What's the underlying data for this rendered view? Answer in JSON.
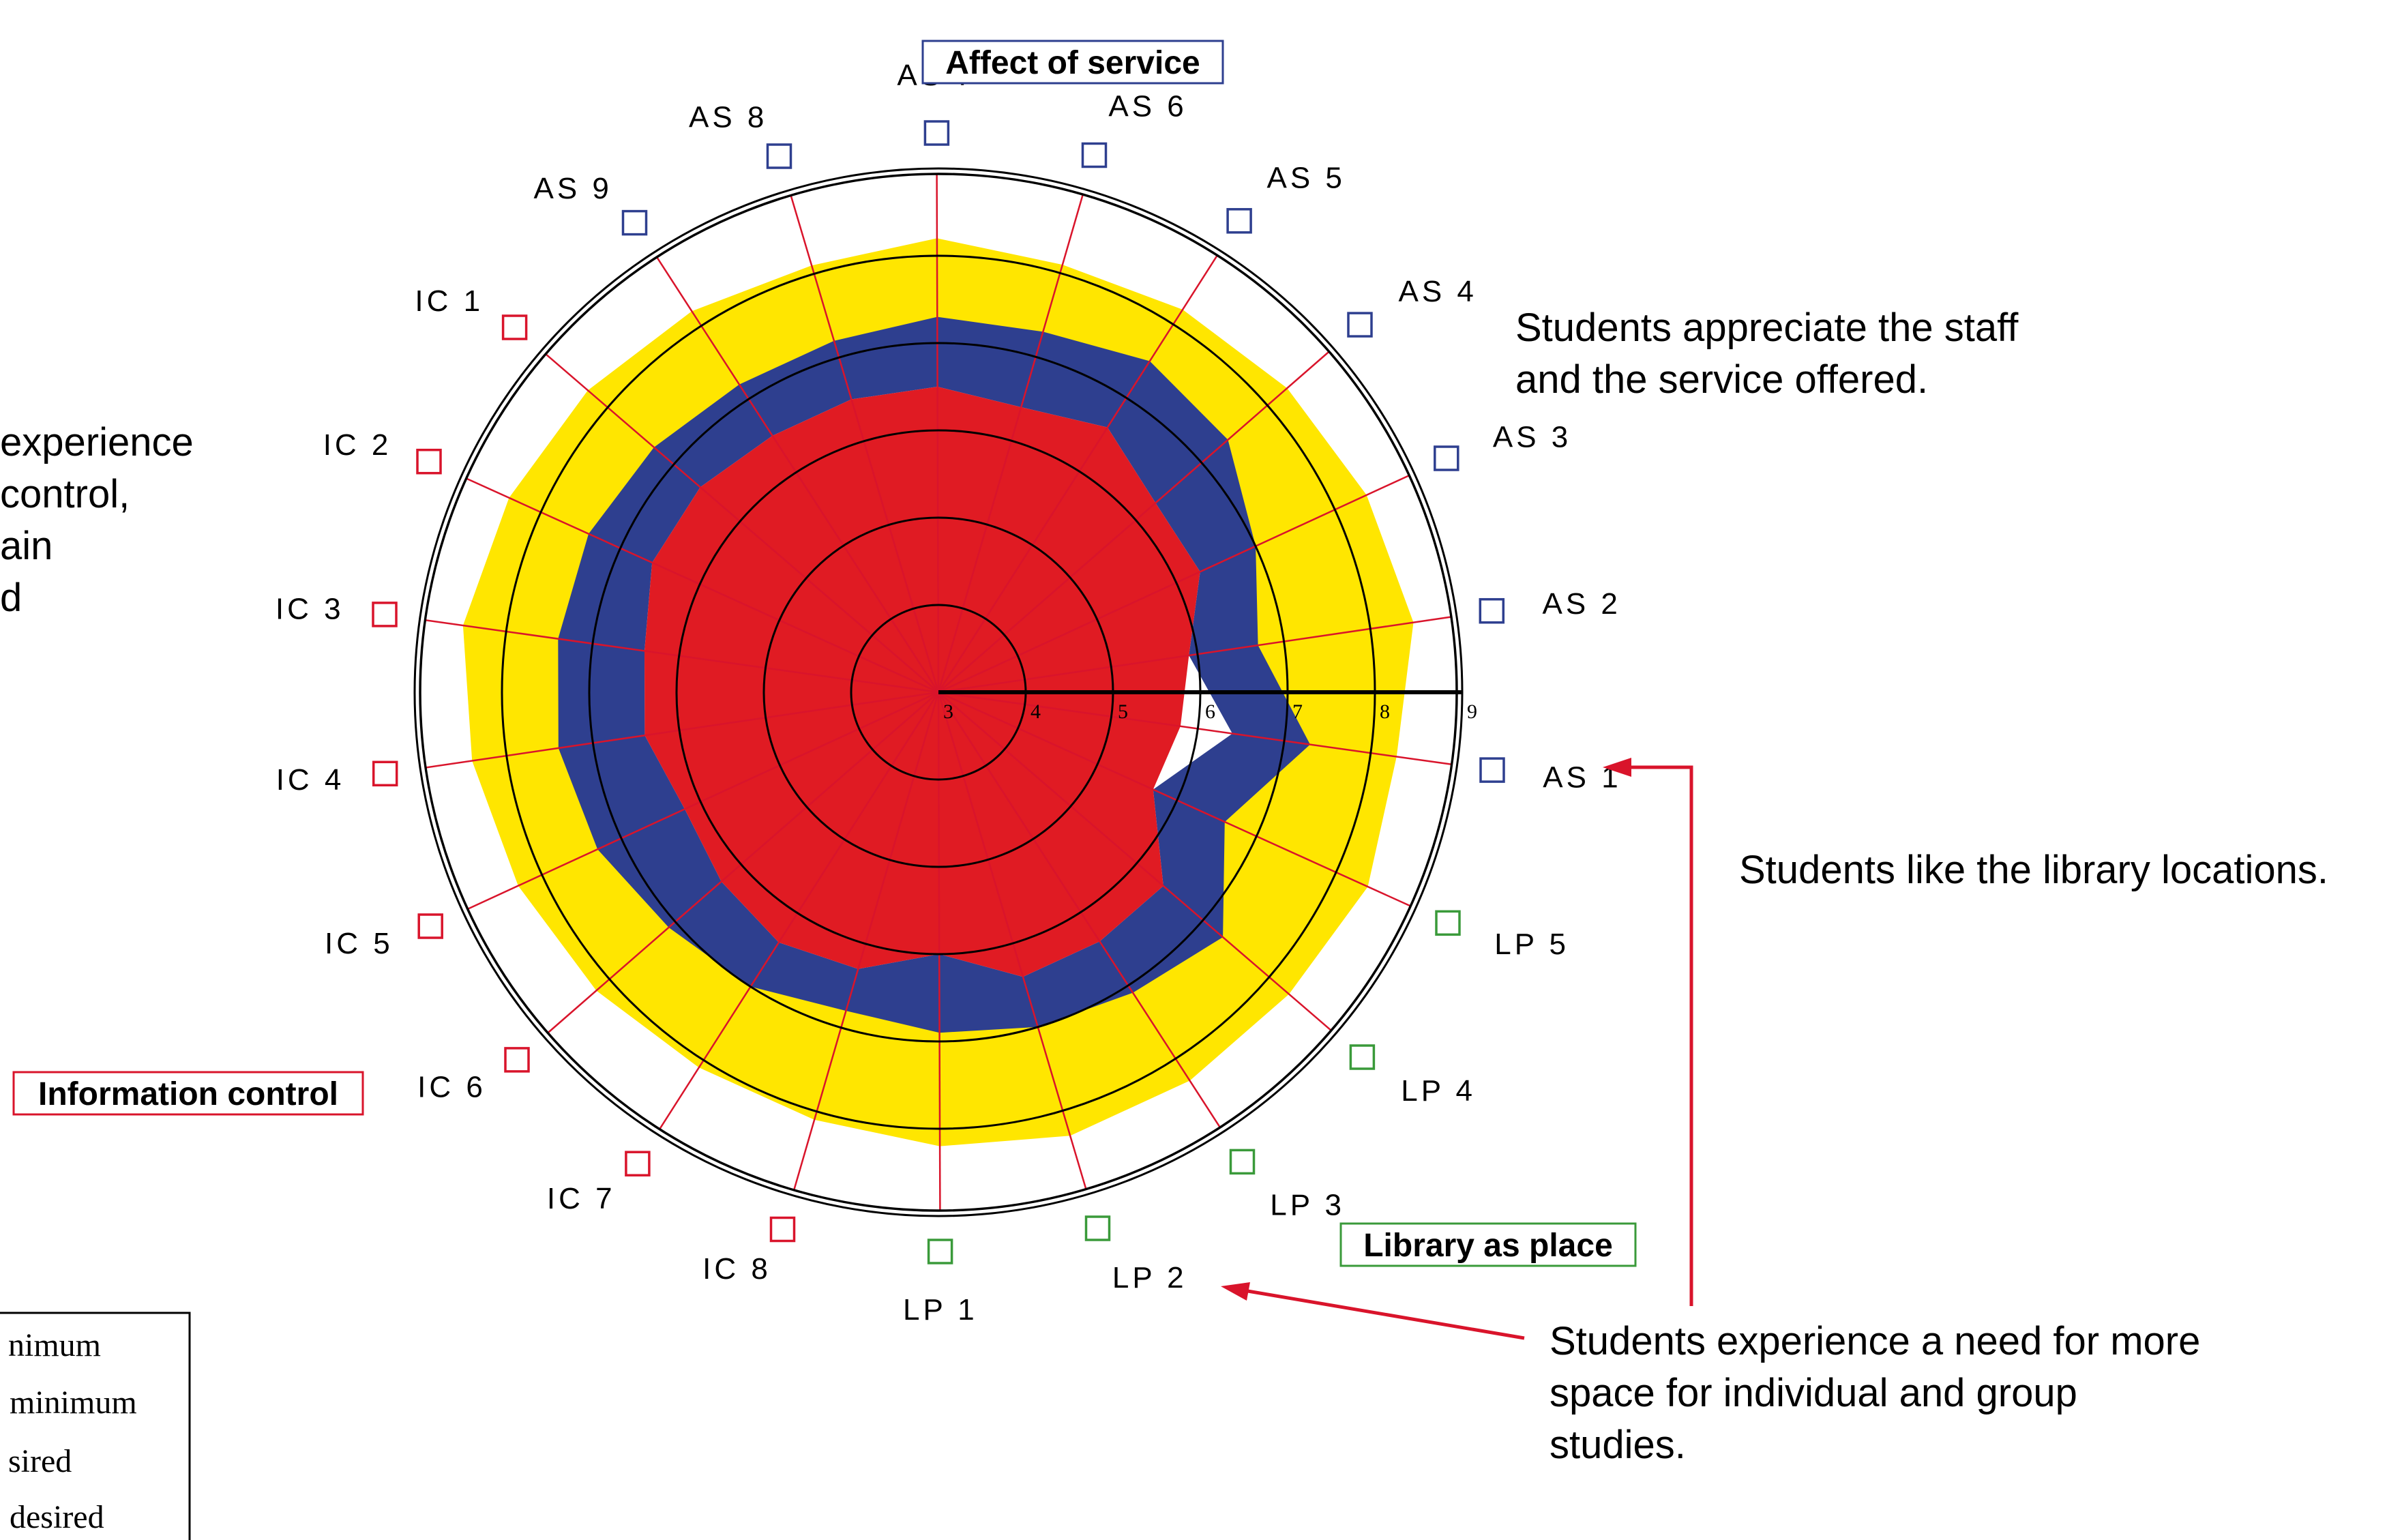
{
  "chart_data": {
    "type": "radar",
    "scale_ticks": [
      "3",
      "4",
      "5",
      "6",
      "7",
      "8",
      "9"
    ],
    "scale_range": [
      3,
      9
    ],
    "axes": [
      "AS 1",
      "AS 2",
      "AS 3",
      "AS 4",
      "AS 5",
      "AS 6",
      "AS 7",
      "AS 8",
      "AS 9",
      "IC 1",
      "IC 2",
      "IC 3",
      "IC 4",
      "IC 5",
      "IC 6",
      "IC 7",
      "IC 8",
      "LP 1",
      "LP 2",
      "LP 3",
      "LP 4",
      "LP 5"
    ],
    "axis_groups": [
      "AS",
      "AS",
      "AS",
      "AS",
      "AS",
      "AS",
      "AS",
      "AS",
      "AS",
      "IC",
      "IC",
      "IC",
      "IC",
      "IC",
      "IC",
      "IC",
      "IC",
      "LP",
      "LP",
      "LP",
      "LP",
      "LP"
    ],
    "group_labels": {
      "AS": "Affect of service",
      "IC": "Information control",
      "LP": "Library as place"
    },
    "series": [
      {
        "values": [
          8.3,
          8.5,
          8.4,
          8.3,
          8.2,
          8.1,
          8.2,
          8.1,
          8.2,
          8.3,
          8.4,
          8.5,
          8.4,
          8.3,
          8.2,
          8.1,
          8.1,
          8.2,
          8.3,
          8.3,
          8.3,
          8.4
        ]
      },
      {
        "values": [
          7.3,
          6.7,
          7.0,
          7.4,
          7.5,
          7.3,
          7.3,
          7.2,
          7.2,
          7.3,
          7.4,
          7.4,
          7.4,
          7.3,
          7.1,
          7.0,
          6.8,
          6.9,
          7.0,
          7.1,
          7.3,
          6.6
        ]
      },
      {
        "values": [
          6.4,
          5.9,
          6.3,
          6.3,
          6.6,
          6.4,
          6.5,
          6.5,
          6.5,
          6.6,
          6.6,
          6.4,
          6.4,
          6.2,
          6.3,
          6.4,
          6.3,
          6.0,
          6.4,
          6.4,
          6.4,
          5.7
        ]
      },
      {
        "values": [
          5.8,
          5.9,
          6.3,
          6.3,
          6.6,
          6.4,
          6.5,
          6.5,
          6.5,
          6.6,
          6.6,
          6.4,
          6.4,
          6.2,
          6.3,
          6.4,
          6.3,
          6.0,
          6.4,
          6.4,
          6.4,
          5.7
        ]
      }
    ],
    "series_colors": [
      "#ffe600",
      "#2e3f8f",
      "#ffffff",
      "#e01b23"
    ],
    "legend": {
      "entries": [
        "nimum",
        "minimum",
        "sired",
        "desired"
      ],
      "placement": "bottom-left"
    },
    "annotations": {
      "staff": [
        "Students appreciate the staff",
        "and the service offered."
      ],
      "locations": [
        "Students like the library locations."
      ],
      "space": [
        "Students experience a need for more",
        "space for individual and group",
        "studies."
      ],
      "info_control": [
        "experience",
        "control,",
        "ain",
        "d"
      ]
    },
    "colors": {
      "AS": "#2e3f8f",
      "IC": "#d9142b",
      "LP": "#3a9a3a",
      "spokes": "#d9142b",
      "rings": "#000000",
      "arrow": "#d9142b"
    }
  }
}
